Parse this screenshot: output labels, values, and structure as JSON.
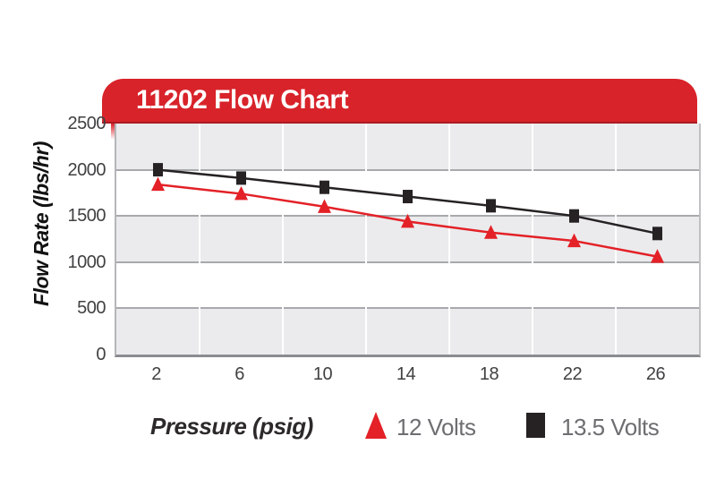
{
  "header": {
    "title": "11202 Flow Chart"
  },
  "chart_data": {
    "type": "line",
    "title": "11202 Flow Chart",
    "x": [
      2,
      6,
      10,
      14,
      18,
      22,
      26
    ],
    "xlabel": "Pressure (psig)",
    "ylabel": "Flow Rate (lbs/hr)",
    "ylim": [
      0,
      2500
    ],
    "yticks": [
      0,
      500,
      1000,
      1500,
      2000,
      2500
    ],
    "grid": "horizontal gray major gridlines every 500; white vertical category-boundary lines; alternating gray/white horizontal bands",
    "legend_position": "bottom",
    "series": [
      {
        "name": "12 Volts",
        "marker": "triangle",
        "color": "#e32127",
        "values": [
          1840,
          1740,
          1600,
          1440,
          1320,
          1230,
          1060
        ]
      },
      {
        "name": "13.5 Volts",
        "marker": "square",
        "color": "#262223",
        "values": [
          2000,
          1910,
          1810,
          1710,
          1610,
          1500,
          1310
        ]
      }
    ]
  },
  "colors": {
    "banner_red": "#d8232a",
    "band_gray": "#ebebed",
    "hgrid_gray": "#a7a9ac",
    "tick_text": "#414042",
    "legend_text": "#6d6e71",
    "series_red": "#e32127",
    "series_black": "#262223"
  }
}
